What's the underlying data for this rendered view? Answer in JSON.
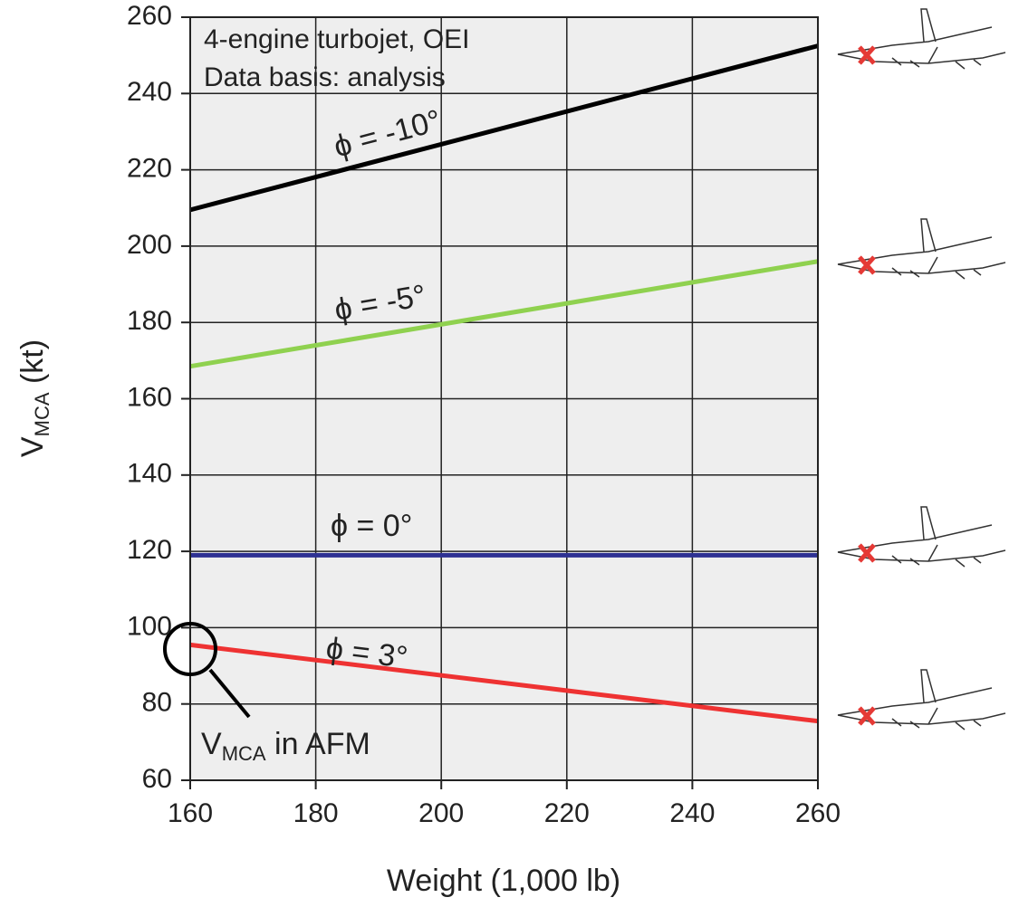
{
  "chart_data": {
    "type": "line",
    "annotations": [
      "4-engine turbojet, OEI",
      "Data basis: analysis"
    ],
    "afm_label": {
      "main": "V",
      "sub": "MCA",
      "rest": " in AFM"
    },
    "y_label": {
      "main": "V",
      "sub": "MCA",
      "rest": " (kt)"
    },
    "x_label": "Weight (1,000 lb)",
    "x": [
      160,
      260
    ],
    "series": [
      {
        "name": "ϕ = -10°",
        "color": "#000000",
        "values": [
          209.5,
          252.5
        ]
      },
      {
        "name": "ϕ = -5°",
        "color": "#8fd14f",
        "values": [
          168.5,
          196
        ]
      },
      {
        "name": "ϕ = 0°",
        "color": "#2e3192",
        "values": [
          119,
          119
        ]
      },
      {
        "name": "ϕ = 3°",
        "color": "#ee3232",
        "values": [
          95.5,
          75.5
        ]
      }
    ],
    "xlim": [
      160,
      260
    ],
    "xticks": [
      160,
      180,
      200,
      220,
      240,
      260
    ],
    "ylim": [
      60,
      260
    ],
    "yticks": [
      60,
      80,
      100,
      120,
      140,
      160,
      180,
      200,
      220,
      240,
      260
    ],
    "grid": true
  }
}
